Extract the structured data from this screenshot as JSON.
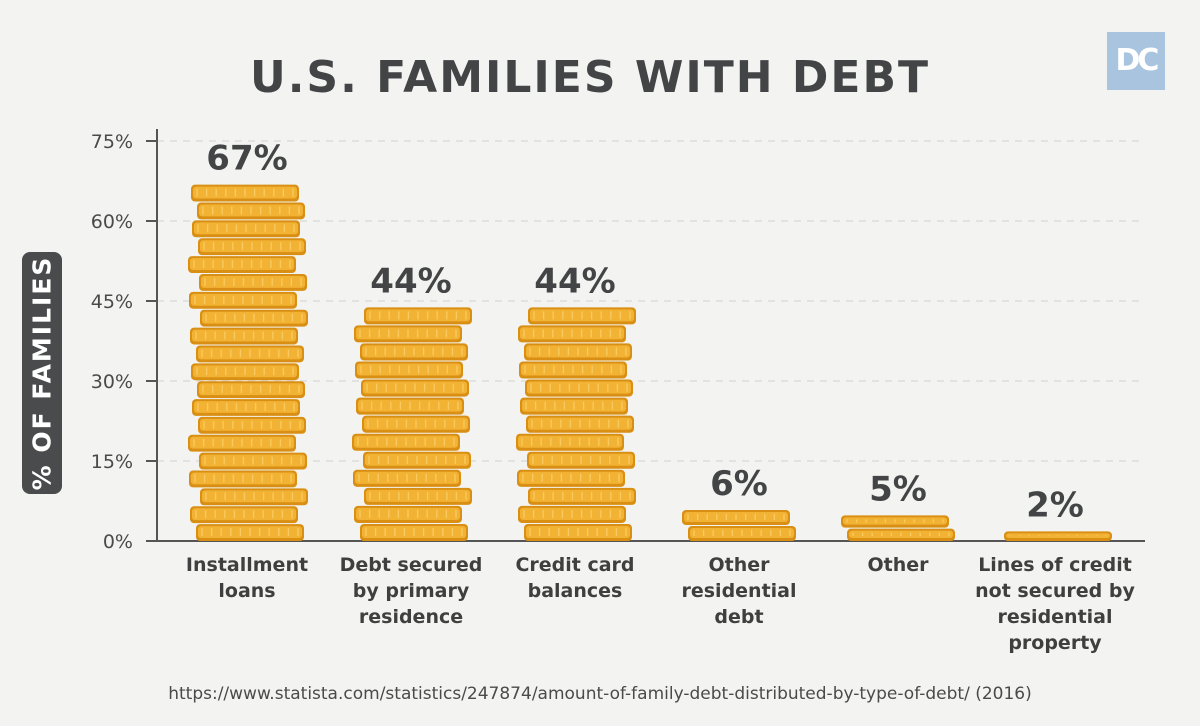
{
  "header": {
    "title": "U.S. FAMILIES WITH DEBT",
    "logo_text": "DC"
  },
  "source": "https://www.statista.com/statistics/247874/amount-of-family-debt-distributed-by-type-of-debt/ (2016)",
  "colors": {
    "background": "#f3f4f1",
    "coin_face": "#f2b233",
    "coin_edge": "#d98f14",
    "coin_ridge": "#fbd06b",
    "text_dark": "#434445",
    "logo_bg": "#a9c4df"
  },
  "chart_data": {
    "type": "bar",
    "title": "U.S. FAMILIES WITH DEBT",
    "ylabel": "% OF FAMILIES",
    "xlabel": "",
    "ylim": [
      0,
      75
    ],
    "yticks": [
      0,
      15,
      30,
      45,
      60,
      75
    ],
    "ytick_labels": [
      "0%",
      "15%",
      "30%",
      "45%",
      "60%",
      "75%"
    ],
    "grid": true,
    "categories": [
      [
        "Installment",
        "loans"
      ],
      [
        "Debt secured",
        "by primary",
        "residence"
      ],
      [
        "Credit card",
        "balances"
      ],
      [
        "Other",
        "residential",
        "debt"
      ],
      [
        "Other"
      ],
      [
        "Lines of credit",
        "not secured by",
        "residential",
        "property"
      ]
    ],
    "values": [
      67,
      44,
      44,
      6,
      5,
      2
    ],
    "data_labels": [
      "67%",
      "44%",
      "44%",
      "6%",
      "5%",
      "2%"
    ]
  }
}
